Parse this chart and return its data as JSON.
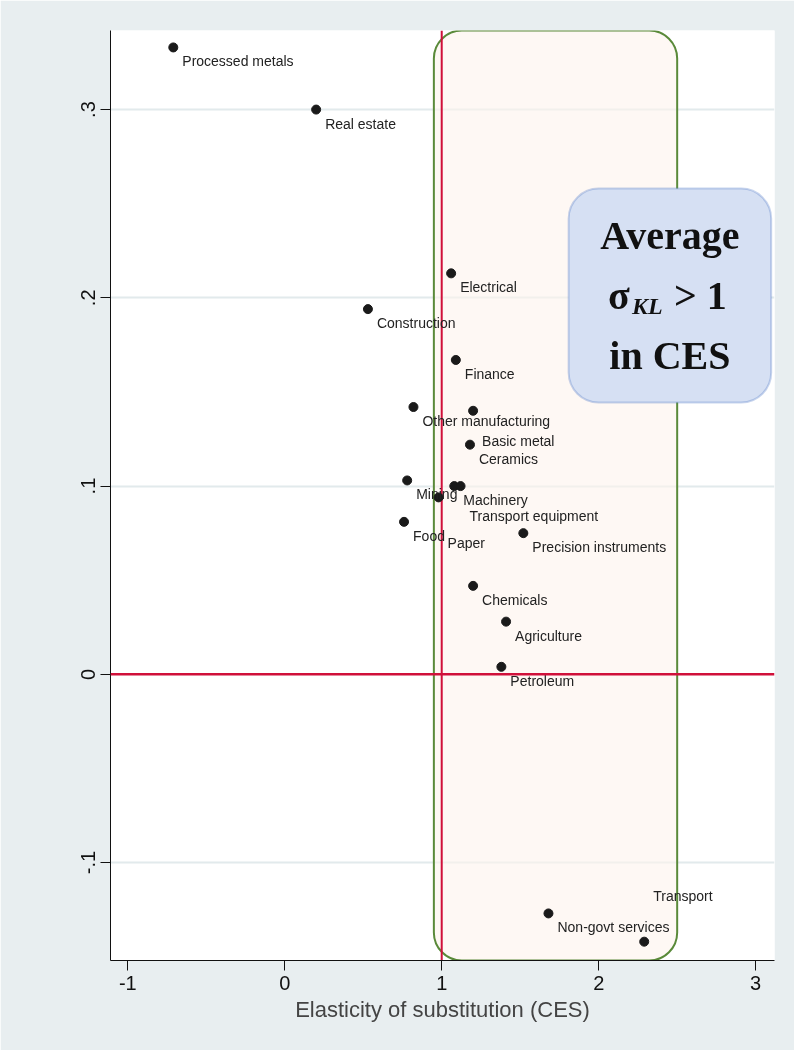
{
  "chart_data": {
    "type": "scatter",
    "xlabel": "Elasticity of substitution (CES)",
    "xlim": [
      -1.11,
      3.12
    ],
    "xticks": [
      -1,
      0,
      1,
      2,
      3
    ],
    "ylim": [
      -0.152,
      0.342
    ],
    "yticks": [
      {
        "value": -0.1,
        "label": "-.1"
      },
      {
        "value": 0,
        "label": "0"
      },
      {
        "value": 0.1,
        "label": ".1"
      },
      {
        "value": 0.2,
        "label": ".2"
      },
      {
        "value": 0.3,
        "label": ".3"
      }
    ],
    "grid": "y",
    "marker": "circle",
    "series": [
      {
        "color": "#1a1a1a",
        "x": [
          -0.71,
          0.2,
          1.06,
          0.53,
          1.09,
          0.82,
          1.2,
          1.18,
          0.78,
          1.08,
          1.12,
          0.98,
          0.76,
          1.52,
          1.2,
          1.41,
          1.38,
          1.68,
          2.29
        ],
        "values": [
          0.333,
          0.3,
          0.213,
          0.194,
          0.167,
          0.142,
          0.14,
          0.122,
          0.103,
          0.1,
          0.1,
          0.094,
          0.081,
          0.075,
          0.047,
          0.028,
          0.004,
          -0.127,
          -0.142
        ]
      }
    ],
    "ref_lines": [
      {
        "axis": "x",
        "value": 1,
        "label": null,
        "color": "#d0103a"
      },
      {
        "axis": "y",
        "value": 0,
        "label": null,
        "color": "#d0103a"
      }
    ],
    "bands": [
      {
        "axis": "x",
        "from": 0.95,
        "to": 2.5,
        "label": null,
        "color": "#5a8a3a"
      }
    ],
    "annotations": [
      {
        "text": "Processed metals",
        "x": -0.71,
        "y": 0.333
      },
      {
        "text": "Real estate",
        "x": 0.2,
        "y": 0.3
      },
      {
        "text": "Electrical",
        "x": 1.06,
        "y": 0.213
      },
      {
        "text": "Construction",
        "x": 0.53,
        "y": 0.194
      },
      {
        "text": "Finance",
        "x": 1.09,
        "y": 0.167
      },
      {
        "text": "Other manufacturing",
        "x": 0.82,
        "y": 0.142
      },
      {
        "text": "Basic metal",
        "x": 1.2,
        "y": 0.14
      },
      {
        "text": "Ceramics",
        "x": 1.18,
        "y": 0.122
      },
      {
        "text": "Mining",
        "x": 0.78,
        "y": 0.103
      },
      {
        "text": "Machinery",
        "x": 1.08,
        "y": 0.1
      },
      {
        "text": "Transport equipment",
        "x": 1.12,
        "y": 0.1
      },
      {
        "text": "Paper",
        "x": 0.98,
        "y": 0.094
      },
      {
        "text": "Food",
        "x": 0.76,
        "y": 0.081
      },
      {
        "text": "Precision instruments",
        "x": 1.52,
        "y": 0.075
      },
      {
        "text": "Chemicals",
        "x": 1.2,
        "y": 0.047
      },
      {
        "text": "Agriculture",
        "x": 1.41,
        "y": 0.028
      },
      {
        "text": "Petroleum",
        "x": 1.38,
        "y": 0.004
      },
      {
        "text": "Non-govt services",
        "x": 1.68,
        "y": -0.127
      },
      {
        "text": "Transport",
        "x": 2.29,
        "y": -0.142
      },
      "Average σ$_{KL}$ > 1 in CES"
    ]
  }
}
